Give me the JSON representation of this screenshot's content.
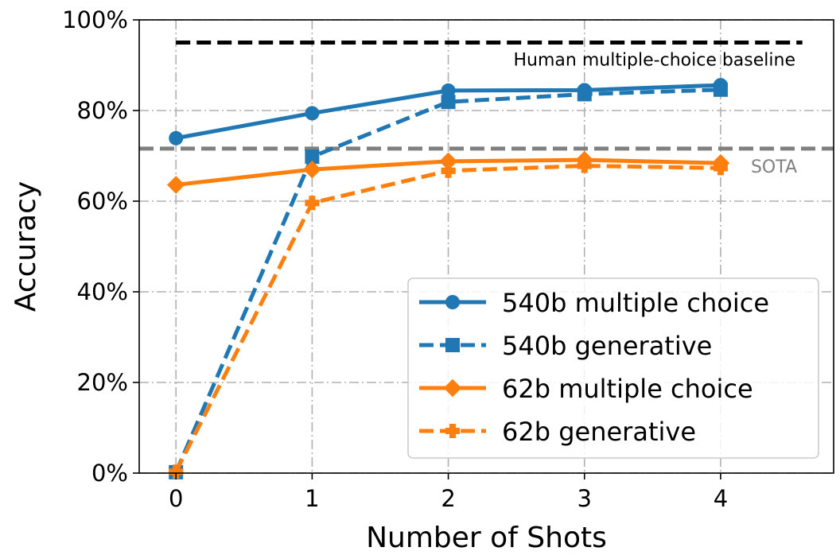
{
  "chart_data": {
    "type": "line",
    "title": "",
    "xlabel": "Number of Shots",
    "ylabel": "Accuracy",
    "x": [
      0,
      1,
      2,
      3,
      4
    ],
    "x_tick_labels": [
      "0",
      "1",
      "2",
      "3",
      "4"
    ],
    "xlim": [
      -0.27,
      4.83
    ],
    "ylim": [
      0,
      100
    ],
    "y_ticks": [
      0,
      20,
      40,
      60,
      80,
      100
    ],
    "y_tick_labels": [
      "0%",
      "20%",
      "40%",
      "60%",
      "80%",
      "100%"
    ],
    "grid": true,
    "legend_position": "bottom-right",
    "series": [
      {
        "name": "540b multiple choice",
        "values": [
          73.9,
          79.4,
          84.4,
          84.5,
          85.6
        ],
        "color": "#1f77b4",
        "linestyle": "solid",
        "marker": "circle"
      },
      {
        "name": "540b generative",
        "values": [
          0.2,
          69.8,
          81.9,
          83.6,
          84.6
        ],
        "color": "#1f77b4",
        "linestyle": "dashed",
        "marker": "square"
      },
      {
        "name": "62b multiple choice",
        "values": [
          63.6,
          67.0,
          68.8,
          69.1,
          68.4
        ],
        "color": "#ff7f0e",
        "linestyle": "solid",
        "marker": "diamond"
      },
      {
        "name": "62b generative",
        "values": [
          0.3,
          59.6,
          66.7,
          67.8,
          67.3
        ],
        "color": "#ff7f0e",
        "linestyle": "dashed",
        "marker": "plus"
      }
    ],
    "reference_lines": [
      {
        "label": "Human multiple-choice baseline",
        "value": 95,
        "color": "#000000",
        "x_start": 0,
        "x_end": 4.6
      },
      {
        "label": "SOTA",
        "value": 71.6,
        "color": "#808080",
        "x_start": -0.27,
        "x_end": 4.83
      }
    ]
  }
}
